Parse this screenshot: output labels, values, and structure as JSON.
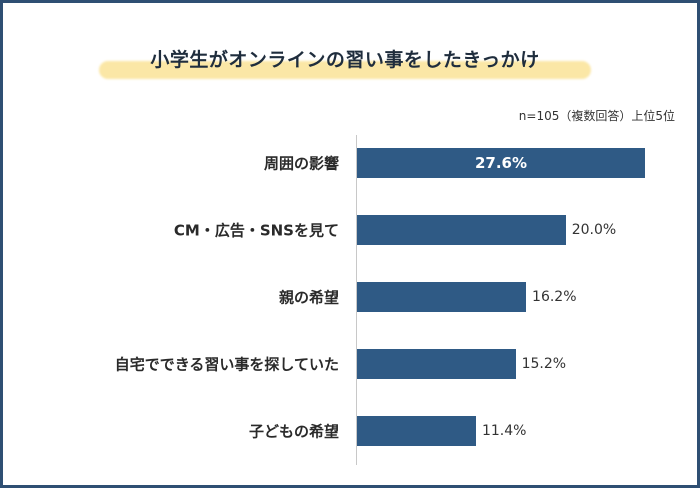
{
  "title": "小学生がオンラインの習い事をしたきっかけ",
  "note": "n=105（複数回答）上位5位",
  "colors": {
    "bar": "#2f5a85",
    "frame": "#2f4f73",
    "highlight": "#fbe7a6"
  },
  "chart_data": {
    "type": "bar",
    "orientation": "horizontal",
    "title": "小学生がオンラインの習い事をしたきっかけ",
    "subtitle": "n=105（複数回答）上位5位",
    "categories": [
      "周囲の影響",
      "CM・広告・SNSを見て",
      "親の希望",
      "自宅でできる習い事を探していた",
      "子どもの希望"
    ],
    "values": [
      27.6,
      20.0,
      16.2,
      15.2,
      11.4
    ],
    "value_labels": [
      "27.6%",
      "20.0%",
      "16.2%",
      "15.2%",
      "11.4%"
    ],
    "unit": "%",
    "xlim": [
      0,
      30
    ],
    "grid": false,
    "legend": "none"
  }
}
